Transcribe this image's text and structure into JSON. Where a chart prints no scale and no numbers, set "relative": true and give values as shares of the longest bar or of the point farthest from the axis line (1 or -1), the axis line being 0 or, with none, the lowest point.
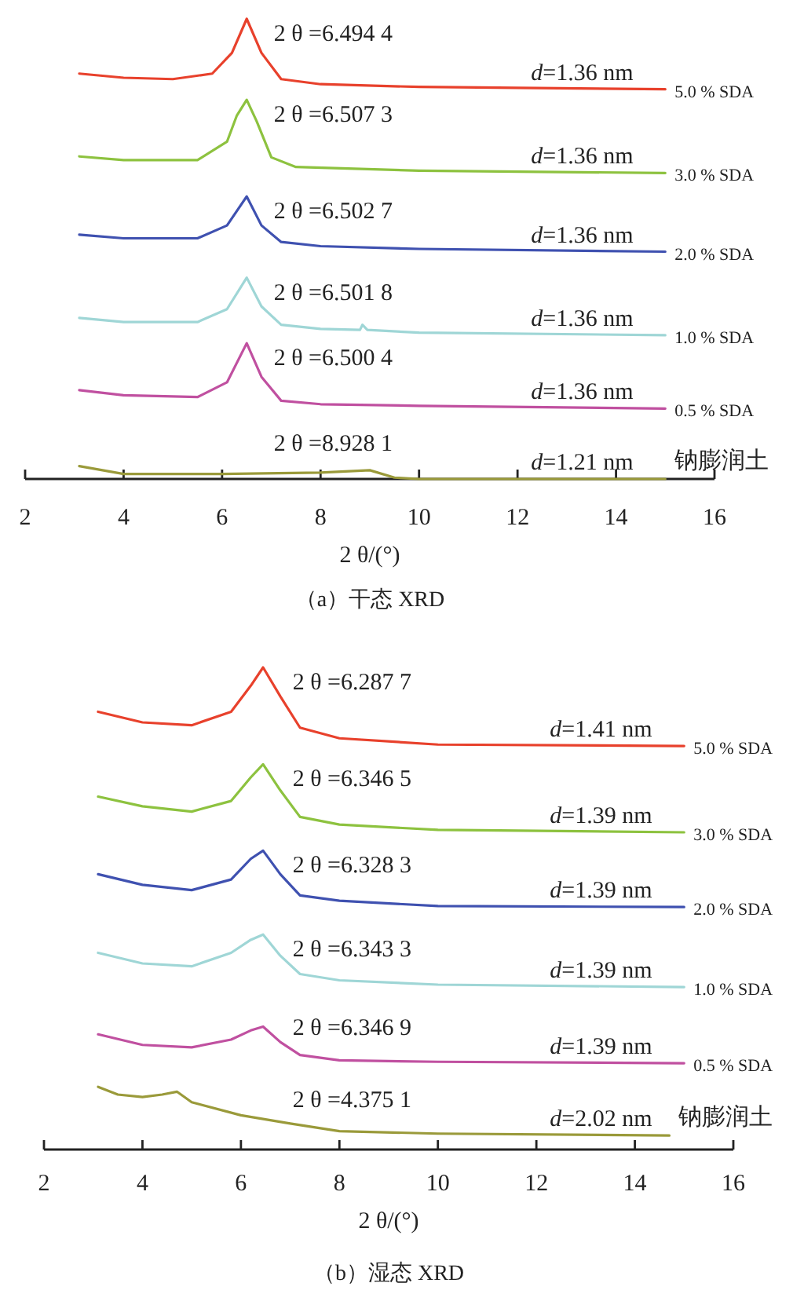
{
  "chart_data": [
    {
      "type": "line",
      "relative": true,
      "title": "（a）干态 XRD",
      "xlabel": "2 θ/(°)",
      "xlim": [
        2,
        16
      ],
      "xticks": [
        2,
        4,
        6,
        8,
        10,
        12,
        14,
        16
      ],
      "annotations": [
        "2 θ =6.494 4",
        "*d*=1.36 nm",
        "2 θ =6.507 3",
        "*d*=1.36 nm",
        "2 θ =6.502 7",
        "*d*=1.36 nm",
        "2 θ =6.501 8",
        "*d*=1.36 nm",
        "2 θ =6.500 4",
        "*d*=1.36 nm",
        "2 θ =8.928 1",
        "*d*=1.21 nm"
      ],
      "series": [
        {
          "name": "5.0 % SDA",
          "color": "#e8412c",
          "x": [
            3.1,
            4,
            5,
            5.8,
            6.2,
            6.5,
            6.8,
            7.2,
            8,
            10,
            12,
            15
          ],
          "values": [
            0.881,
            0.872,
            0.869,
            0.881,
            0.926,
            1.0,
            0.926,
            0.869,
            0.858,
            0.852,
            0.85,
            0.847
          ]
        },
        {
          "name": "3.0 % SDA",
          "color": "#8dc23f",
          "x": [
            3.1,
            4,
            5.5,
            6.1,
            6.3,
            6.5,
            6.7,
            7,
            7.5,
            10,
            15
          ],
          "values": [
            0.701,
            0.693,
            0.693,
            0.733,
            0.79,
            0.824,
            0.778,
            0.699,
            0.678,
            0.67,
            0.665
          ]
        },
        {
          "name": "2.0 % SDA",
          "color": "#3f51b0",
          "x": [
            3.1,
            4,
            5.5,
            6.1,
            6.5,
            6.8,
            7.2,
            8,
            10,
            15
          ],
          "values": [
            0.531,
            0.523,
            0.523,
            0.551,
            0.614,
            0.551,
            0.515,
            0.506,
            0.5,
            0.494
          ]
        },
        {
          "name": "1.0 % SDA",
          "color": "#9fd6d6",
          "x": [
            3.1,
            4,
            5.5,
            6.1,
            6.5,
            6.8,
            7.2,
            8,
            8.8,
            8.85,
            8.95,
            10,
            15
          ],
          "values": [
            0.35,
            0.341,
            0.341,
            0.369,
            0.4375,
            0.375,
            0.335,
            0.326,
            0.324,
            0.335,
            0.324,
            0.318,
            0.3125
          ]
        },
        {
          "name": "0.5 % SDA",
          "color": "#c050a0",
          "x": [
            3.1,
            4,
            5.5,
            6.1,
            6.5,
            6.8,
            7.2,
            8,
            10,
            15
          ],
          "values": [
            0.193,
            0.182,
            0.178,
            0.21,
            0.295,
            0.222,
            0.17,
            0.1625,
            0.159,
            0.153
          ]
        },
        {
          "name": "钠膨润土",
          "color": "#9a9a3a",
          "x": [
            3.1,
            4,
            6,
            8,
            9,
            9.5,
            10,
            12,
            15
          ],
          "values": [
            0.028,
            0.011,
            0.011,
            0.014,
            0.019,
            0.003,
            0,
            0,
            0
          ]
        }
      ]
    },
    {
      "type": "line",
      "relative": true,
      "title": "（b）湿态 XRD",
      "xlabel": "2 θ/(°)",
      "xlim": [
        2,
        16
      ],
      "xticks": [
        2,
        4,
        6,
        8,
        10,
        12,
        14,
        16
      ],
      "annotations": [
        "2 θ =6.287 7",
        "*d*=1.41 nm",
        "2 θ =6.346 5",
        "*d*=1.39 nm",
        "2 θ =6.328 3",
        "*d*=1.39 nm",
        "2 θ =6.343 3",
        "*d*=1.39 nm",
        "2 θ =6.346 9",
        "*d*=1.39 nm",
        "2 θ =4.375 1",
        "*d*=2.02 nm"
      ],
      "series": [
        {
          "name": "5.0 % SDA",
          "color": "#e8412c",
          "x": [
            3.1,
            4,
            5,
            5.8,
            6.2,
            6.45,
            6.8,
            7.2,
            8,
            10,
            15
          ],
          "values": [
            0.908,
            0.886,
            0.88,
            0.908,
            0.962,
            1.0,
            0.94,
            0.875,
            0.853,
            0.84,
            0.837
          ]
        },
        {
          "name": "3.0 % SDA",
          "color": "#8dc23f",
          "x": [
            3.1,
            4,
            5,
            5.8,
            6.2,
            6.45,
            6.8,
            7.2,
            8,
            10,
            15
          ],
          "values": [
            0.732,
            0.712,
            0.701,
            0.723,
            0.772,
            0.799,
            0.745,
            0.69,
            0.674,
            0.663,
            0.658
          ]
        },
        {
          "name": "2.0 % SDA",
          "color": "#3f51b0",
          "x": [
            3.1,
            4,
            5,
            5.8,
            6.2,
            6.45,
            6.8,
            7.2,
            8,
            10,
            15
          ],
          "values": [
            0.571,
            0.549,
            0.538,
            0.56,
            0.603,
            0.62,
            0.571,
            0.527,
            0.516,
            0.505,
            0.503
          ]
        },
        {
          "name": "1.0 % SDA",
          "color": "#9fd6d6",
          "x": [
            3.1,
            4,
            5,
            5.8,
            6.2,
            6.45,
            6.8,
            7.2,
            8,
            10,
            15
          ],
          "values": [
            0.408,
            0.386,
            0.38,
            0.408,
            0.435,
            0.446,
            0.402,
            0.364,
            0.351,
            0.342,
            0.337
          ]
        },
        {
          "name": "0.5 % SDA",
          "color": "#c050a0",
          "x": [
            3.1,
            4,
            5,
            5.8,
            6.2,
            6.45,
            6.8,
            7.2,
            8,
            10,
            15
          ],
          "values": [
            0.239,
            0.217,
            0.212,
            0.228,
            0.247,
            0.255,
            0.223,
            0.196,
            0.185,
            0.182,
            0.179
          ]
        },
        {
          "name": "钠膨润土",
          "color": "#9a9a3a",
          "x": [
            3.1,
            3.5,
            4,
            4.4,
            4.7,
            5,
            6,
            7,
            8,
            10,
            14.7
          ],
          "values": [
            0.13,
            0.114,
            0.109,
            0.114,
            0.12,
            0.098,
            0.071,
            0.054,
            0.038,
            0.033,
            0.029
          ]
        }
      ]
    }
  ]
}
